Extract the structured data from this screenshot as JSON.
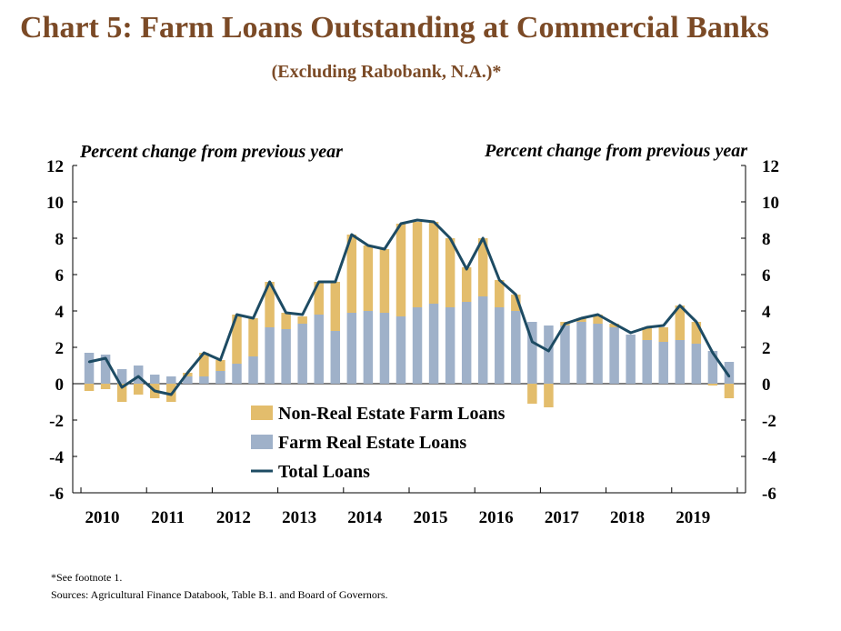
{
  "title": "Chart 5: Farm Loans Outstanding at Commercial Banks",
  "subtitle": "(Excluding Rabobank, N.A.)*",
  "footnotes": {
    "note": "*See footnote 1.",
    "sources": "Sources: Agricultural Finance Databook, Table B.1. and Board of Governors."
  },
  "colors": {
    "title": "#7b4a26",
    "non_real_estate": "#e3bd6c",
    "real_estate": "#9fb1c9",
    "total": "#1d4b63"
  },
  "chart_data": {
    "type": "bar",
    "stacked": true,
    "ylabel_left": "Percent change from previous year",
    "ylabel_right": "Percent change from previous year",
    "ylim": [
      -6,
      12
    ],
    "yticks": [
      -6,
      -4,
      -2,
      0,
      2,
      4,
      6,
      8,
      10,
      12
    ],
    "xticks": [
      "2010",
      "2011",
      "2012",
      "2013",
      "2014",
      "2015",
      "2016",
      "2017",
      "2018",
      "2019"
    ],
    "periods": [
      "2010Q1",
      "2010Q2",
      "2010Q3",
      "2010Q4",
      "2011Q1",
      "2011Q2",
      "2011Q3",
      "2011Q4",
      "2012Q1",
      "2012Q2",
      "2012Q3",
      "2012Q4",
      "2013Q1",
      "2013Q2",
      "2013Q3",
      "2013Q4",
      "2014Q1",
      "2014Q2",
      "2014Q3",
      "2014Q4",
      "2015Q1",
      "2015Q2",
      "2015Q3",
      "2015Q4",
      "2016Q1",
      "2016Q2",
      "2016Q3",
      "2016Q4",
      "2017Q1",
      "2017Q2",
      "2017Q3",
      "2017Q4",
      "2018Q1",
      "2018Q2",
      "2018Q3",
      "2018Q4",
      "2019Q1",
      "2019Q2",
      "2019Q3",
      "2019Q4"
    ],
    "grid": false,
    "legend_position": "bottom-center",
    "series": [
      {
        "name": "Non-Real Estate Farm Loans",
        "type": "bar",
        "values": [
          -0.4,
          -0.3,
          -1.0,
          -0.6,
          -0.8,
          -1.0,
          0.2,
          1.3,
          0.6,
          2.7,
          2.1,
          2.5,
          0.9,
          0.4,
          1.8,
          2.7,
          4.3,
          3.6,
          3.5,
          5.1,
          4.7,
          4.5,
          3.8,
          1.9,
          3.2,
          1.5,
          0.9,
          -1.1,
          -1.3,
          0.2,
          0.2,
          0.5,
          0.2,
          0.0,
          0.7,
          0.8,
          1.9,
          1.2,
          -0.1,
          -0.8
        ]
      },
      {
        "name": "Farm Real Estate Loans",
        "type": "bar",
        "values": [
          1.7,
          1.6,
          0.8,
          1.0,
          0.5,
          0.4,
          0.4,
          0.4,
          0.7,
          1.1,
          1.5,
          3.1,
          3.0,
          3.3,
          3.8,
          2.9,
          3.9,
          4.0,
          3.9,
          3.7,
          4.2,
          4.4,
          4.2,
          4.5,
          4.8,
          4.2,
          4.0,
          3.4,
          3.2,
          3.2,
          3.4,
          3.3,
          3.1,
          2.7,
          2.4,
          2.3,
          2.4,
          2.2,
          1.8,
          1.2
        ]
      },
      {
        "name": "Total Loans",
        "type": "line",
        "values": [
          1.2,
          1.4,
          -0.2,
          0.4,
          -0.4,
          -0.6,
          0.6,
          1.7,
          1.3,
          3.8,
          3.6,
          5.6,
          3.9,
          3.8,
          5.6,
          5.6,
          8.2,
          7.6,
          7.4,
          8.8,
          9.0,
          8.9,
          8.0,
          6.3,
          8.0,
          5.7,
          4.9,
          2.3,
          1.8,
          3.3,
          3.6,
          3.8,
          3.3,
          2.8,
          3.1,
          3.2,
          4.3,
          3.4,
          1.7,
          0.4
        ]
      }
    ]
  }
}
